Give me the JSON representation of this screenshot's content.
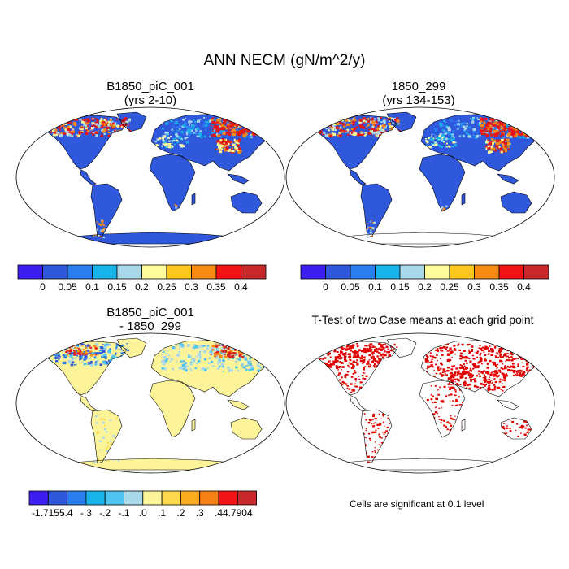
{
  "figure": {
    "title": "ANN NECM (gN/m^2/y)",
    "note": "Cells are significant at 0.1 level"
  },
  "panels": {
    "top_left": {
      "title_line1": "B1850_piC_001",
      "title_line2": "(yrs 2-10)"
    },
    "top_right": {
      "title_line1": "1850_299",
      "title_line2": "(yrs 134-153)"
    },
    "bottom_left": {
      "title_line1": "B1850_piC_001",
      "title_line2": "- 1850_299"
    },
    "bottom_right": {
      "title_line1": "T-Test of two Case means at each grid point"
    }
  },
  "colorbars": {
    "top": {
      "colors": [
        "#3c1ff0",
        "#2f58dc",
        "#2a7ef0",
        "#17b4ec",
        "#a8d8ea",
        "#fdfb9a",
        "#fcc81e",
        "#f78a13",
        "#f21414",
        "#c8282a"
      ],
      "labels": [
        "0",
        "0.05",
        "0.1",
        "0.15",
        "0.2",
        "0.25",
        "0.3",
        "0.35",
        "0.4"
      ]
    },
    "diff": {
      "colors": [
        "#3c1ff0",
        "#2f58dc",
        "#2a7ef0",
        "#17b4ec",
        "#4fc3f0",
        "#a8d8ea",
        "#fdf49a",
        "#fcd84a",
        "#fcaa1e",
        "#f77f13",
        "#f21414",
        "#c8282a"
      ],
      "labels": [
        "-1.7155",
        "-.4",
        "-.3",
        "-.2",
        "-.1",
        ".0",
        ".1",
        ".2",
        ".3",
        ".4",
        "4.7904"
      ]
    }
  },
  "map_colors": {
    "land_blue": "#2f58dc",
    "land_yellow": "#fdf49a",
    "hot_red": "#e61616",
    "orange": "#f78a13",
    "light_blue": "#a8d8ea",
    "sig_red": "#e30000"
  }
}
